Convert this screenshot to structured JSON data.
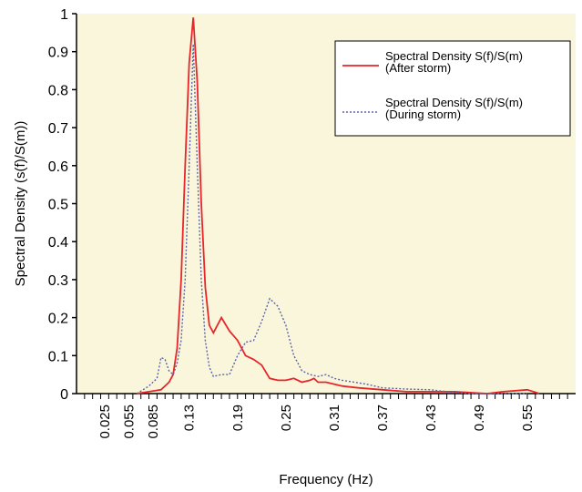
{
  "chart_data": {
    "type": "line",
    "xlabel": "Frequency (Hz)",
    "ylabel": "Spectral Density (s(f)/S(m))",
    "xlim": [
      -0.01,
      0.61
    ],
    "ylim": [
      0,
      1
    ],
    "x_ticks": [
      "0.025",
      "0.055",
      "0.085",
      "0.13",
      "0.19",
      "0.25",
      "0.31",
      "0.37",
      "0.43",
      "0.49",
      "0.55"
    ],
    "x_tick_values": [
      0.025,
      0.055,
      0.085,
      0.13,
      0.19,
      0.25,
      0.31,
      0.37,
      0.43,
      0.49,
      0.55
    ],
    "y_ticks": [
      "0",
      "0.1",
      "0.2",
      "0.3",
      "0.4",
      "0.5",
      "0.6",
      "0.7",
      "0.8",
      "0.9",
      "1"
    ],
    "grid": false,
    "legend_position": "top-right",
    "colors": {
      "plot_background": "#faf6dc",
      "after": "#e8262a",
      "during": "#5b63a8"
    },
    "series": [
      {
        "name": "Spectral Density S(f)/S(m)\n(After storm)",
        "style": "solid",
        "x": [
          0.065,
          0.08,
          0.095,
          0.105,
          0.11,
          0.115,
          0.12,
          0.125,
          0.13,
          0.135,
          0.14,
          0.145,
          0.15,
          0.155,
          0.16,
          0.17,
          0.18,
          0.19,
          0.2,
          0.21,
          0.22,
          0.23,
          0.24,
          0.25,
          0.26,
          0.27,
          0.28,
          0.285,
          0.29,
          0.3,
          0.31,
          0.32,
          0.34,
          0.37,
          0.4,
          0.43,
          0.46,
          0.5,
          0.52,
          0.55,
          0.565
        ],
        "y": [
          0.0,
          0.005,
          0.01,
          0.03,
          0.05,
          0.12,
          0.3,
          0.6,
          0.87,
          0.99,
          0.82,
          0.5,
          0.28,
          0.18,
          0.16,
          0.2,
          0.165,
          0.14,
          0.1,
          0.09,
          0.075,
          0.04,
          0.035,
          0.035,
          0.04,
          0.03,
          0.035,
          0.04,
          0.03,
          0.03,
          0.025,
          0.02,
          0.015,
          0.01,
          0.005,
          0.005,
          0.005,
          0.0,
          0.005,
          0.01,
          0.0
        ]
      },
      {
        "name": "Spectral Density S(f)/S(m)\n(During storm)",
        "style": "dotted",
        "x": [
          0.065,
          0.08,
          0.09,
          0.095,
          0.1,
          0.105,
          0.11,
          0.115,
          0.12,
          0.125,
          0.13,
          0.135,
          0.14,
          0.145,
          0.15,
          0.155,
          0.16,
          0.17,
          0.18,
          0.19,
          0.2,
          0.21,
          0.22,
          0.23,
          0.24,
          0.25,
          0.26,
          0.265,
          0.27,
          0.28,
          0.29,
          0.3,
          0.31,
          0.32,
          0.35,
          0.37,
          0.4,
          0.43,
          0.45,
          0.48,
          0.52,
          0.55
        ],
        "y": [
          0.0,
          0.02,
          0.04,
          0.095,
          0.09,
          0.06,
          0.05,
          0.08,
          0.14,
          0.3,
          0.6,
          0.92,
          0.6,
          0.3,
          0.14,
          0.07,
          0.045,
          0.05,
          0.05,
          0.1,
          0.135,
          0.14,
          0.19,
          0.25,
          0.23,
          0.18,
          0.1,
          0.08,
          0.06,
          0.05,
          0.045,
          0.05,
          0.04,
          0.035,
          0.025,
          0.015,
          0.012,
          0.01,
          0.005,
          0.0,
          0.0,
          0.0
        ]
      }
    ]
  }
}
